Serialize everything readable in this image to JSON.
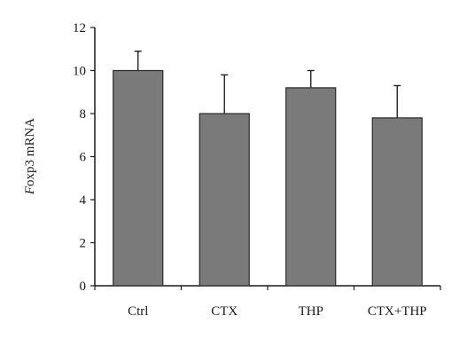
{
  "chart_data": {
    "type": "bar",
    "title": "",
    "xlabel": "",
    "ylabel": "Foxp3 mRNA",
    "ylabel_italic_part": "F",
    "ylabel_rest": "oxp3 mRNA",
    "ylim": [
      0,
      12
    ],
    "yticks": [
      0,
      2,
      4,
      6,
      8,
      10,
      12
    ],
    "grid": false,
    "legend": "none",
    "categories": [
      "Ctrl",
      "CTX",
      "THP",
      "CTX+THP"
    ],
    "values": [
      10.0,
      8.0,
      9.2,
      7.8
    ],
    "error_upper": [
      0.9,
      1.8,
      0.8,
      1.5
    ],
    "bar_color": "#7a7a7a",
    "bar_edge_color": "#2a2a2a",
    "axis_color": "#1a1a1a"
  }
}
